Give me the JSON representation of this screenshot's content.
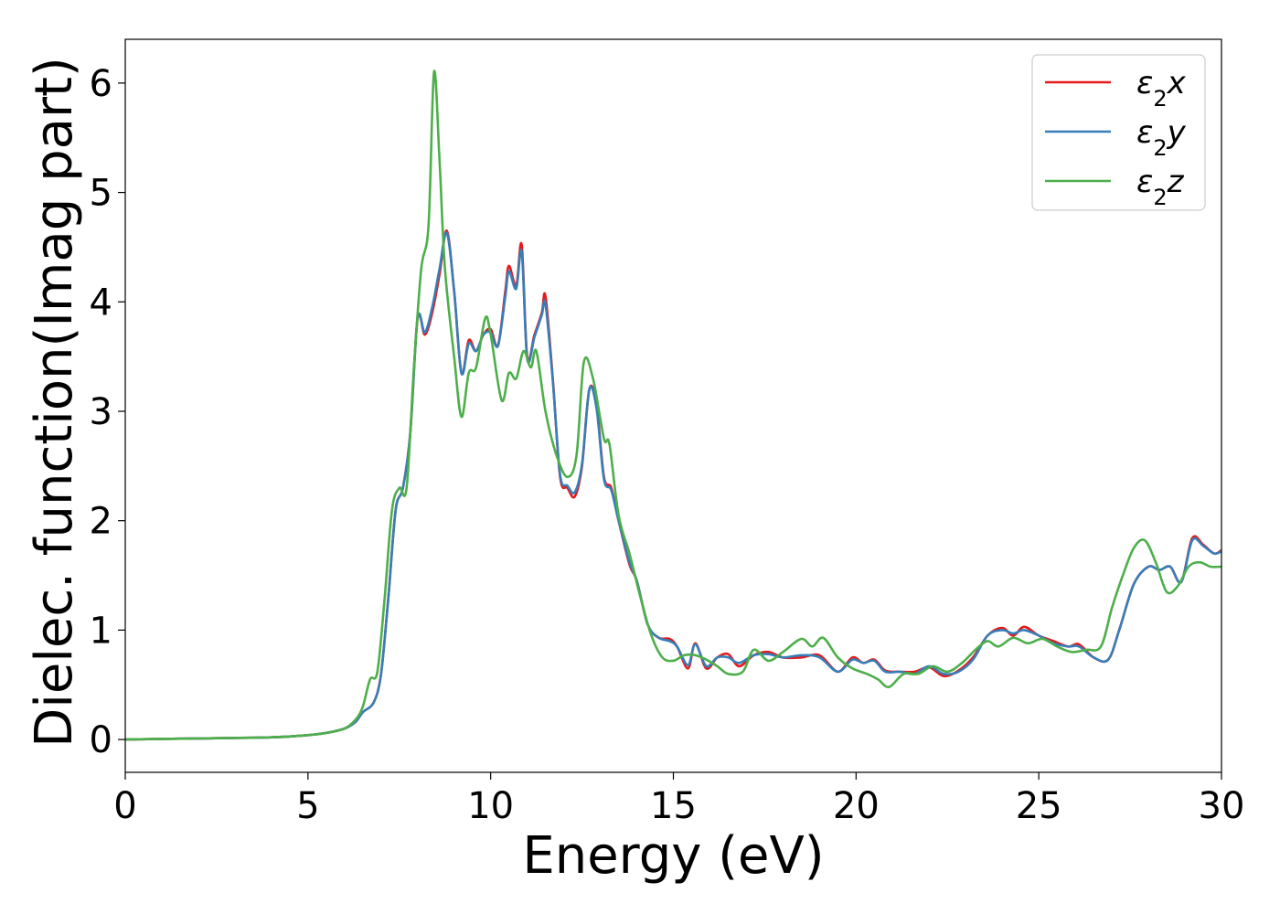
{
  "chart_data": {
    "type": "line",
    "title": "",
    "xlabel": "Energy (eV)",
    "ylabel": "Dielec. function(Imag part)",
    "xlim": [
      0,
      30
    ],
    "ylim": [
      -0.3,
      6.4
    ],
    "xticks": [
      0,
      5,
      10,
      15,
      20,
      25,
      30
    ],
    "yticks": [
      0,
      1,
      2,
      3,
      4,
      5,
      6
    ],
    "grid": false,
    "legend_position": "top-right",
    "series": [
      {
        "name": "ε₂x",
        "legend": {
          "base": "ε",
          "sub": "2",
          "suffix": "x"
        },
        "color": "#e41a1c",
        "points": [
          [
            0,
            0
          ],
          [
            2,
            0.01
          ],
          [
            4,
            0.02
          ],
          [
            5,
            0.04
          ],
          [
            5.5,
            0.06
          ],
          [
            6,
            0.1
          ],
          [
            6.3,
            0.16
          ],
          [
            6.5,
            0.25
          ],
          [
            6.8,
            0.34
          ],
          [
            7,
            0.6
          ],
          [
            7.2,
            1.3
          ],
          [
            7.4,
            2.1
          ],
          [
            7.6,
            2.3
          ],
          [
            7.8,
            2.8
          ],
          [
            8,
            3.85
          ],
          [
            8.2,
            3.7
          ],
          [
            8.4,
            3.9
          ],
          [
            8.6,
            4.25
          ],
          [
            8.8,
            4.65
          ],
          [
            9,
            4.1
          ],
          [
            9.2,
            3.35
          ],
          [
            9.4,
            3.65
          ],
          [
            9.6,
            3.55
          ],
          [
            9.8,
            3.7
          ],
          [
            10,
            3.75
          ],
          [
            10.2,
            3.6
          ],
          [
            10.4,
            4.1
          ],
          [
            10.5,
            4.33
          ],
          [
            10.7,
            4.15
          ],
          [
            10.85,
            4.52
          ],
          [
            11,
            3.5
          ],
          [
            11.2,
            3.7
          ],
          [
            11.4,
            3.9
          ],
          [
            11.5,
            4.05
          ],
          [
            11.7,
            3.3
          ],
          [
            11.9,
            2.4
          ],
          [
            12.1,
            2.3
          ],
          [
            12.3,
            2.22
          ],
          [
            12.5,
            2.5
          ],
          [
            12.7,
            3.2
          ],
          [
            12.9,
            3.05
          ],
          [
            13.1,
            2.4
          ],
          [
            13.3,
            2.3
          ],
          [
            13.5,
            2.0
          ],
          [
            13.8,
            1.6
          ],
          [
            14,
            1.45
          ],
          [
            14.3,
            1.05
          ],
          [
            14.6,
            0.93
          ],
          [
            14.9,
            0.92
          ],
          [
            15.1,
            0.85
          ],
          [
            15.4,
            0.65
          ],
          [
            15.6,
            0.88
          ],
          [
            15.9,
            0.65
          ],
          [
            16.2,
            0.75
          ],
          [
            16.5,
            0.78
          ],
          [
            16.8,
            0.67
          ],
          [
            17.2,
            0.77
          ],
          [
            17.6,
            0.8
          ],
          [
            18,
            0.75
          ],
          [
            18.5,
            0.75
          ],
          [
            19,
            0.77
          ],
          [
            19.5,
            0.62
          ],
          [
            19.9,
            0.75
          ],
          [
            20.2,
            0.7
          ],
          [
            20.5,
            0.73
          ],
          [
            20.8,
            0.63
          ],
          [
            21.2,
            0.62
          ],
          [
            21.6,
            0.62
          ],
          [
            22,
            0.66
          ],
          [
            22.4,
            0.58
          ],
          [
            22.8,
            0.63
          ],
          [
            23.2,
            0.75
          ],
          [
            23.6,
            0.95
          ],
          [
            24,
            1.02
          ],
          [
            24.3,
            0.95
          ],
          [
            24.6,
            1.03
          ],
          [
            25,
            0.95
          ],
          [
            25.4,
            0.9
          ],
          [
            25.8,
            0.85
          ],
          [
            26.1,
            0.87
          ],
          [
            26.5,
            0.75
          ],
          [
            26.9,
            0.73
          ],
          [
            27.2,
            1.0
          ],
          [
            27.6,
            1.42
          ],
          [
            28,
            1.58
          ],
          [
            28.3,
            1.55
          ],
          [
            28.6,
            1.58
          ],
          [
            28.9,
            1.44
          ],
          [
            29.2,
            1.84
          ],
          [
            29.5,
            1.78
          ],
          [
            29.8,
            1.7
          ],
          [
            30,
            1.73
          ]
        ]
      },
      {
        "name": "ε₂y",
        "legend": {
          "base": "ε",
          "sub": "2",
          "suffix": "y"
        },
        "color": "#377eb8",
        "points": [
          [
            0,
            0
          ],
          [
            2,
            0.01
          ],
          [
            4,
            0.02
          ],
          [
            5,
            0.04
          ],
          [
            5.5,
            0.06
          ],
          [
            6,
            0.1
          ],
          [
            6.3,
            0.16
          ],
          [
            6.5,
            0.25
          ],
          [
            6.8,
            0.34
          ],
          [
            7,
            0.6
          ],
          [
            7.2,
            1.3
          ],
          [
            7.4,
            2.1
          ],
          [
            7.6,
            2.3
          ],
          [
            7.8,
            2.8
          ],
          [
            8,
            3.85
          ],
          [
            8.2,
            3.72
          ],
          [
            8.4,
            3.95
          ],
          [
            8.6,
            4.3
          ],
          [
            8.8,
            4.63
          ],
          [
            9,
            4.1
          ],
          [
            9.2,
            3.35
          ],
          [
            9.4,
            3.62
          ],
          [
            9.6,
            3.55
          ],
          [
            9.8,
            3.7
          ],
          [
            10,
            3.72
          ],
          [
            10.2,
            3.6
          ],
          [
            10.4,
            4.05
          ],
          [
            10.5,
            4.28
          ],
          [
            10.7,
            4.12
          ],
          [
            10.85,
            4.46
          ],
          [
            11,
            3.48
          ],
          [
            11.2,
            3.68
          ],
          [
            11.4,
            3.88
          ],
          [
            11.5,
            3.98
          ],
          [
            11.7,
            3.28
          ],
          [
            11.9,
            2.42
          ],
          [
            12.1,
            2.32
          ],
          [
            12.3,
            2.26
          ],
          [
            12.5,
            2.52
          ],
          [
            12.7,
            3.2
          ],
          [
            12.9,
            3.02
          ],
          [
            13.1,
            2.38
          ],
          [
            13.3,
            2.28
          ],
          [
            13.5,
            2.0
          ],
          [
            13.8,
            1.62
          ],
          [
            14,
            1.45
          ],
          [
            14.3,
            1.05
          ],
          [
            14.6,
            0.93
          ],
          [
            14.9,
            0.9
          ],
          [
            15.1,
            0.85
          ],
          [
            15.4,
            0.68
          ],
          [
            15.6,
            0.87
          ],
          [
            15.9,
            0.67
          ],
          [
            16.2,
            0.75
          ],
          [
            16.5,
            0.75
          ],
          [
            16.8,
            0.7
          ],
          [
            17.2,
            0.77
          ],
          [
            17.6,
            0.78
          ],
          [
            18,
            0.75
          ],
          [
            18.5,
            0.77
          ],
          [
            19,
            0.75
          ],
          [
            19.5,
            0.62
          ],
          [
            19.9,
            0.73
          ],
          [
            20.2,
            0.7
          ],
          [
            20.5,
            0.72
          ],
          [
            20.8,
            0.62
          ],
          [
            21.2,
            0.62
          ],
          [
            21.6,
            0.6
          ],
          [
            22,
            0.67
          ],
          [
            22.4,
            0.6
          ],
          [
            22.8,
            0.62
          ],
          [
            23.2,
            0.73
          ],
          [
            23.6,
            0.95
          ],
          [
            24,
            1.0
          ],
          [
            24.3,
            0.97
          ],
          [
            24.6,
            1.0
          ],
          [
            25,
            0.95
          ],
          [
            25.4,
            0.88
          ],
          [
            25.8,
            0.85
          ],
          [
            26.1,
            0.85
          ],
          [
            26.5,
            0.75
          ],
          [
            26.9,
            0.73
          ],
          [
            27.2,
            1.0
          ],
          [
            27.6,
            1.42
          ],
          [
            28,
            1.58
          ],
          [
            28.3,
            1.55
          ],
          [
            28.6,
            1.58
          ],
          [
            28.9,
            1.44
          ],
          [
            29.2,
            1.82
          ],
          [
            29.5,
            1.77
          ],
          [
            29.8,
            1.7
          ],
          [
            30,
            1.72
          ]
        ]
      },
      {
        "name": "ε₂z",
        "legend": {
          "base": "ε",
          "sub": "2",
          "suffix": "z"
        },
        "color": "#4daf4a",
        "points": [
          [
            0,
            0
          ],
          [
            2,
            0.01
          ],
          [
            4,
            0.02
          ],
          [
            5,
            0.04
          ],
          [
            5.5,
            0.06
          ],
          [
            6,
            0.1
          ],
          [
            6.3,
            0.18
          ],
          [
            6.5,
            0.3
          ],
          [
            6.7,
            0.55
          ],
          [
            6.9,
            0.62
          ],
          [
            7.1,
            1.3
          ],
          [
            7.3,
            2.1
          ],
          [
            7.5,
            2.3
          ],
          [
            7.7,
            2.3
          ],
          [
            7.9,
            3.4
          ],
          [
            8.1,
            4.3
          ],
          [
            8.3,
            4.7
          ],
          [
            8.45,
            6.1
          ],
          [
            8.6,
            5.3
          ],
          [
            8.75,
            4.3
          ],
          [
            9,
            3.5
          ],
          [
            9.2,
            2.95
          ],
          [
            9.4,
            3.35
          ],
          [
            9.6,
            3.4
          ],
          [
            9.85,
            3.85
          ],
          [
            10,
            3.7
          ],
          [
            10.3,
            3.1
          ],
          [
            10.5,
            3.35
          ],
          [
            10.7,
            3.3
          ],
          [
            10.9,
            3.55
          ],
          [
            11.1,
            3.4
          ],
          [
            11.25,
            3.55
          ],
          [
            11.5,
            3.0
          ],
          [
            11.8,
            2.6
          ],
          [
            12.1,
            2.4
          ],
          [
            12.35,
            2.6
          ],
          [
            12.55,
            3.45
          ],
          [
            12.8,
            3.3
          ],
          [
            13.1,
            2.75
          ],
          [
            13.25,
            2.7
          ],
          [
            13.5,
            2.05
          ],
          [
            13.8,
            1.7
          ],
          [
            14.1,
            1.3
          ],
          [
            14.4,
            0.95
          ],
          [
            14.7,
            0.75
          ],
          [
            15,
            0.72
          ],
          [
            15.3,
            0.77
          ],
          [
            15.6,
            0.77
          ],
          [
            15.9,
            0.73
          ],
          [
            16.2,
            0.67
          ],
          [
            16.5,
            0.6
          ],
          [
            16.9,
            0.62
          ],
          [
            17.2,
            0.82
          ],
          [
            17.6,
            0.72
          ],
          [
            18,
            0.8
          ],
          [
            18.5,
            0.92
          ],
          [
            18.8,
            0.85
          ],
          [
            19.1,
            0.93
          ],
          [
            19.5,
            0.75
          ],
          [
            19.9,
            0.65
          ],
          [
            20.3,
            0.6
          ],
          [
            20.6,
            0.55
          ],
          [
            20.9,
            0.48
          ],
          [
            21.3,
            0.6
          ],
          [
            21.7,
            0.6
          ],
          [
            22.1,
            0.67
          ],
          [
            22.5,
            0.62
          ],
          [
            22.9,
            0.7
          ],
          [
            23.3,
            0.83
          ],
          [
            23.6,
            0.9
          ],
          [
            23.9,
            0.85
          ],
          [
            24.3,
            0.93
          ],
          [
            24.7,
            0.88
          ],
          [
            25.1,
            0.92
          ],
          [
            25.5,
            0.85
          ],
          [
            25.9,
            0.8
          ],
          [
            26.3,
            0.82
          ],
          [
            26.7,
            0.85
          ],
          [
            27,
            1.2
          ],
          [
            27.3,
            1.5
          ],
          [
            27.6,
            1.75
          ],
          [
            27.9,
            1.82
          ],
          [
            28.2,
            1.62
          ],
          [
            28.5,
            1.35
          ],
          [
            28.8,
            1.4
          ],
          [
            29.1,
            1.58
          ],
          [
            29.4,
            1.62
          ],
          [
            29.7,
            1.58
          ],
          [
            30,
            1.58
          ]
        ]
      }
    ]
  }
}
